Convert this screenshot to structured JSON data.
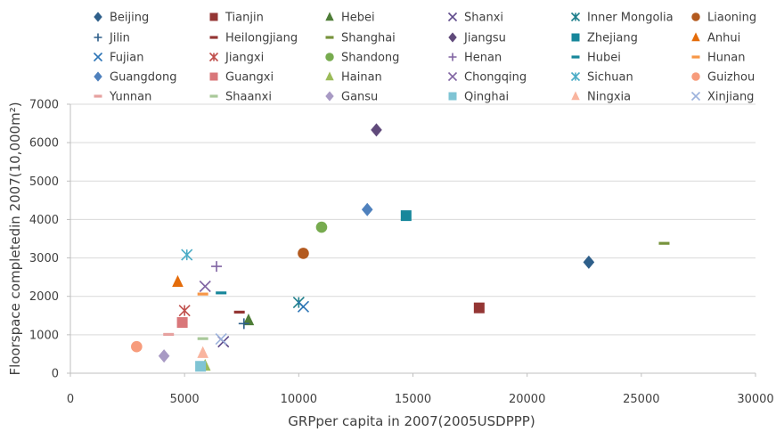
{
  "chart_data": {
    "type": "scatter",
    "xlabel": "GRPper capita in 2007(2005USDPPP)",
    "ylabel": "Floorspace completedin 2007(10,000m²)",
    "xlim": [
      0,
      30000
    ],
    "ylim": [
      0,
      7000
    ],
    "xticks": [
      "0",
      "5000",
      "10000",
      "15000",
      "20000",
      "25000",
      "30000"
    ],
    "yticks": [
      "0",
      "1000",
      "2000",
      "3000",
      "4000",
      "5000",
      "6000",
      "7000"
    ],
    "grid": "horizontal",
    "legend_position": "top",
    "series": [
      {
        "name": "Beijing",
        "marker": "diamond",
        "color": "#2e5f8a",
        "points": [
          [
            22700,
            2890
          ]
        ]
      },
      {
        "name": "Tianjin",
        "marker": "square",
        "color": "#943634",
        "points": [
          [
            17900,
            1700
          ]
        ]
      },
      {
        "name": "Hebei",
        "marker": "triangle",
        "color": "#4e7d37",
        "points": [
          [
            7800,
            1380
          ]
        ]
      },
      {
        "name": "Shanxi",
        "marker": "x",
        "color": "#5f4b8b",
        "points": [
          [
            6700,
            820
          ]
        ]
      },
      {
        "name": "Inner Mongolia",
        "marker": "star",
        "color": "#1f7f8c",
        "points": [
          [
            10000,
            1840
          ]
        ]
      },
      {
        "name": "Liaoning",
        "marker": "circle",
        "color": "#b35a1f",
        "points": [
          [
            10200,
            3120
          ]
        ]
      },
      {
        "name": "Jilin",
        "marker": "plus",
        "color": "#2e5f8a",
        "points": [
          [
            7600,
            1290
          ]
        ]
      },
      {
        "name": "Heilongjiang",
        "marker": "dash",
        "color": "#943634",
        "points": [
          [
            7400,
            1590
          ]
        ]
      },
      {
        "name": "Shanghai",
        "marker": "dash",
        "color": "#77933c",
        "points": [
          [
            26000,
            3380
          ]
        ]
      },
      {
        "name": "Jiangsu",
        "marker": "diamond",
        "color": "#604a7b",
        "points": [
          [
            13400,
            6330
          ]
        ]
      },
      {
        "name": "Zhejiang",
        "marker": "square",
        "color": "#17879b",
        "points": [
          [
            14700,
            4100
          ]
        ]
      },
      {
        "name": "Anhui",
        "marker": "triangle",
        "color": "#e46c0a",
        "points": [
          [
            4700,
            2380
          ]
        ]
      },
      {
        "name": "Fujian",
        "marker": "x",
        "color": "#2e75b6",
        "points": [
          [
            10200,
            1730
          ]
        ]
      },
      {
        "name": "Jiangxi",
        "marker": "star",
        "color": "#c0504d",
        "points": [
          [
            5000,
            1630
          ]
        ]
      },
      {
        "name": "Shandong",
        "marker": "circle",
        "color": "#77ab4f",
        "points": [
          [
            11000,
            3800
          ]
        ]
      },
      {
        "name": "Henan",
        "marker": "plus",
        "color": "#8064a2",
        "points": [
          [
            6400,
            2780
          ]
        ]
      },
      {
        "name": "Hubei",
        "marker": "dash",
        "color": "#17879b",
        "points": [
          [
            6600,
            2090
          ]
        ]
      },
      {
        "name": "Hunan",
        "marker": "dash",
        "color": "#f79646",
        "points": [
          [
            5800,
            2060
          ]
        ]
      },
      {
        "name": "Guangdong",
        "marker": "diamond",
        "color": "#4f81bd",
        "points": [
          [
            13000,
            4260
          ]
        ]
      },
      {
        "name": "Guangxi",
        "marker": "square",
        "color": "#d9777a",
        "points": [
          [
            4900,
            1320
          ]
        ]
      },
      {
        "name": "Hainan",
        "marker": "triangle",
        "color": "#9bbb59",
        "points": [
          [
            5900,
            200
          ]
        ]
      },
      {
        "name": "Chongqing",
        "marker": "x",
        "color": "#8064a2",
        "points": [
          [
            5900,
            2260
          ]
        ]
      },
      {
        "name": "Sichuan",
        "marker": "star",
        "color": "#4bacc6",
        "points": [
          [
            5100,
            3080
          ]
        ]
      },
      {
        "name": "Guizhou",
        "marker": "circle",
        "color": "#f79c7c",
        "points": [
          [
            2900,
            690
          ]
        ]
      },
      {
        "name": "Yunnan",
        "marker": "dash",
        "color": "#e6a19f",
        "points": [
          [
            4300,
            1010
          ]
        ]
      },
      {
        "name": "Shaanxi",
        "marker": "dash",
        "color": "#a9c99a",
        "points": [
          [
            5800,
            900
          ]
        ]
      },
      {
        "name": "Gansu",
        "marker": "diamond",
        "color": "#a89ac4",
        "points": [
          [
            4100,
            450
          ]
        ]
      },
      {
        "name": "Qinghai",
        "marker": "square",
        "color": "#7fc4d4",
        "points": [
          [
            5700,
            180
          ]
        ]
      },
      {
        "name": "Ningxia",
        "marker": "triangle",
        "color": "#f9b59f",
        "points": [
          [
            5800,
            530
          ]
        ]
      },
      {
        "name": "Xinjiang",
        "marker": "x",
        "color": "#9cb2dc",
        "points": [
          [
            6600,
            890
          ]
        ]
      }
    ]
  }
}
